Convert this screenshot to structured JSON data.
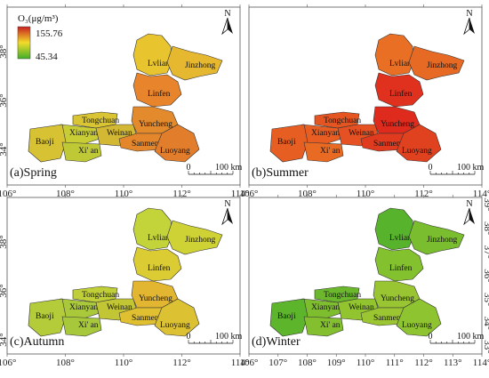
{
  "legend": {
    "title": "O₃(μg/m³)",
    "max_label": "155.76",
    "min_label": "45.34",
    "max_value": 155.76,
    "min_value": 45.34,
    "color_high": "#c81e1e",
    "color_mid": "#f2dc2a",
    "color_low": "#3fae2a"
  },
  "north_label": "N",
  "scale_bar": {
    "start": "0",
    "end": "100 km"
  },
  "cities": [
    "Lvliang",
    "Jinzhong",
    "Linfen",
    "Tongchuan",
    "Xianyang",
    "Weinan",
    "Yuncheng",
    "Baoji",
    "Xi'an",
    "Sanmenxia",
    "Luoyang"
  ],
  "city_labels": {
    "lvliang": "Lvliang",
    "jinzhong": "Jinzhong",
    "linfen": "Linfen",
    "tongchuan": "Tongchuan",
    "xianyang": "Xianyang",
    "weinan": "Weinan",
    "yuncheng": "Yuncheng",
    "baoji": "Baoji",
    "xian": "Xi' an",
    "sanmenxia": "Sanmenxia",
    "luoyang": "Luoyang"
  },
  "panels": [
    {
      "title": "(a)Spring",
      "x_ticks": [
        "106°",
        "108°",
        "110°",
        "112°",
        "114°"
      ],
      "y_ticks": [
        "38°",
        "36°",
        "34°"
      ],
      "y_ticks_right": [],
      "colors": {
        "lvliang": "#e8c42e",
        "jinzhong": "#e6b830",
        "linfen": "#e8842c",
        "tongchuan": "#d9c534",
        "xianyang": "#c8cd36",
        "weinan": "#d2b833",
        "yuncheng": "#e28a2c",
        "baoji": "#d6c233",
        "xian": "#bfc936",
        "sanmenxia": "#e4862c",
        "luoyang": "#e27e2b"
      }
    },
    {
      "title": "(b)Summer",
      "x_ticks": [
        "106°",
        "108°",
        "110°",
        "112°",
        "114°"
      ],
      "y_ticks": [],
      "y_ticks_right": [],
      "colors": {
        "lvliang": "#e86f24",
        "jinzhong": "#e66a24",
        "linfen": "#e0311f",
        "tongchuan": "#e45521",
        "xianyang": "#e85e22",
        "weinan": "#e55122",
        "yuncheng": "#de2b1d",
        "baoji": "#e75e22",
        "xian": "#e96a23",
        "sanmenxia": "#e03a1f",
        "luoyang": "#e0411f"
      }
    },
    {
      "title": "(c)Autumn",
      "x_ticks": [
        "106°",
        "108°",
        "110°",
        "112°",
        "114°"
      ],
      "y_ticks": [
        "38°",
        "36°",
        "34°"
      ],
      "y_ticks_right": [],
      "colors": {
        "lvliang": "#c3d33a",
        "jinzhong": "#cfd234",
        "linfen": "#dbcc33",
        "tongchuan": "#c0cf38",
        "xianyang": "#aac93a",
        "weinan": "#c2c635",
        "yuncheng": "#e2b630",
        "baoji": "#b4cb3a",
        "xian": "#a7c83b",
        "sanmenxia": "#e0bf31",
        "luoyang": "#dcc232"
      }
    },
    {
      "title": "(d)Winter",
      "x_ticks": [
        "106°",
        "107°",
        "108°",
        "109°",
        "110°",
        "111°",
        "112°",
        "113°",
        "114°"
      ],
      "y_ticks": [],
      "y_ticks_right": [
        "39°",
        "38°",
        "37°",
        "36°",
        "35°",
        "34°",
        "33°"
      ],
      "colors": {
        "lvliang": "#58b32c",
        "jinzhong": "#7abd2e",
        "linfen": "#84c12f",
        "tongchuan": "#6cb82d",
        "xianyang": "#7ebd2e",
        "weinan": "#92c430",
        "yuncheng": "#99c532",
        "baoji": "#5db52c",
        "xian": "#83bf2f",
        "sanmenxia": "#9bc632",
        "luoyang": "#8fc431"
      }
    }
  ]
}
